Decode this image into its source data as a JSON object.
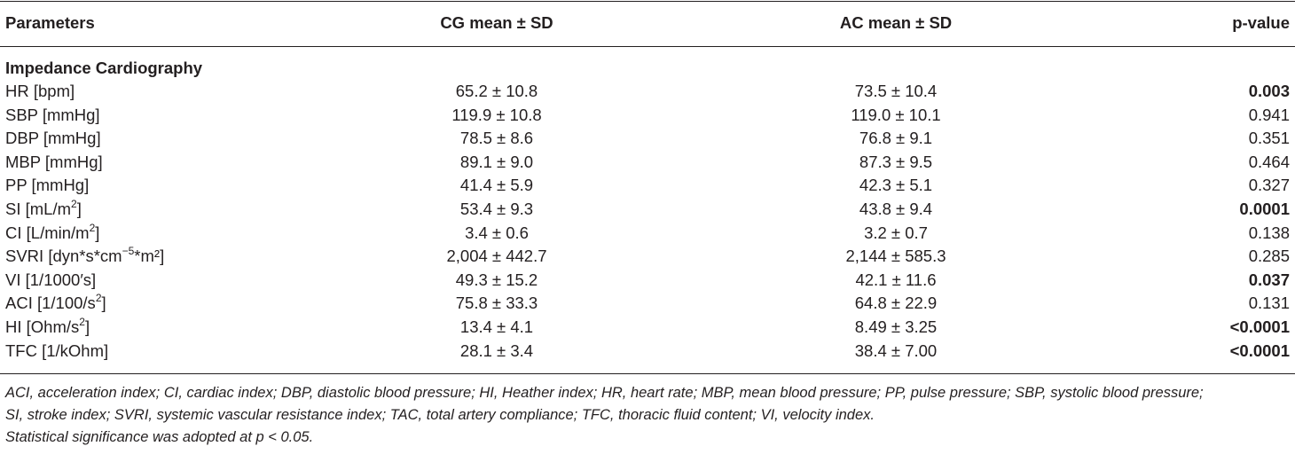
{
  "table": {
    "headers": {
      "parameters": "Parameters",
      "cg": "CG mean ± SD",
      "ac": "AC mean ± SD",
      "p": "p-value"
    },
    "section_title": "Impedance Cardiography",
    "rows": [
      {
        "param": "HR [bpm]",
        "cg": "65.2 ± 10.8",
        "ac": "73.5 ± 10.4",
        "p": "0.003",
        "significant": true
      },
      {
        "param": "SBP [mmHg]",
        "cg": "119.9 ± 10.8",
        "ac": "119.0 ± 10.1",
        "p": "0.941",
        "significant": false
      },
      {
        "param": "DBP [mmHg]",
        "cg": "78.5 ± 8.6",
        "ac": "76.8 ± 9.1",
        "p": "0.351",
        "significant": false
      },
      {
        "param": "MBP [mmHg]",
        "cg": "89.1 ± 9.0",
        "ac": "87.3 ± 9.5",
        "p": "0.464",
        "significant": false
      },
      {
        "param": "PP [mmHg]",
        "cg": "41.4 ± 5.9",
        "ac": "42.3 ± 5.1",
        "p": "0.327",
        "significant": false
      },
      {
        "param": "SI [mL/m",
        "param_sup": "2",
        "param_tail": "]",
        "cg": "53.4 ± 9.3",
        "ac": "43.8 ± 9.4",
        "p": "0.0001",
        "significant": true
      },
      {
        "param": "CI [L/min/m",
        "param_sup": "2",
        "param_tail": "]",
        "cg": "3.4 ± 0.6",
        "ac": "3.2 ± 0.7",
        "p": "0.138",
        "significant": false
      },
      {
        "param": "SVRI [dyn*s*cm",
        "param_sup": "−5",
        "param_tail": "*m²]",
        "cg": "2,004 ± 442.7",
        "ac": "2,144 ± 585.3",
        "p": "0.285",
        "significant": false
      },
      {
        "param": "VI [1/1000′s]",
        "cg": "49.3 ± 15.2",
        "ac": "42.1 ± 11.6",
        "p": "0.037",
        "significant": true
      },
      {
        "param": "ACI [1/100/s",
        "param_sup": "2",
        "param_tail": "]",
        "cg": "75.8 ± 33.3",
        "ac": "64.8 ± 22.9",
        "p": "0.131",
        "significant": false
      },
      {
        "param": "HI [Ohm/s",
        "param_sup": "2",
        "param_tail": "]",
        "cg": "13.4 ± 4.1",
        "ac": "8.49 ± 3.25",
        "p": "<0.0001",
        "significant": true
      },
      {
        "param": "TFC [1/kOhm]",
        "cg": "28.1 ± 3.4",
        "ac": "38.4 ± 7.00",
        "p": "<0.0001",
        "significant": true
      }
    ]
  },
  "footnotes": {
    "line1": "ACI, acceleration index; CI, cardiac index; DBP, diastolic blood pressure; HI, Heather index; HR, heart rate; MBP, mean blood pressure; PP, pulse pressure; SBP, systolic blood pressure;",
    "line2": "SI, stroke index; SVRI, systemic vascular resistance index; TAC, total artery compliance; TFC, thoracic fluid content; VI, velocity index.",
    "line3": "Statistical significance was adopted at p < 0.05."
  }
}
